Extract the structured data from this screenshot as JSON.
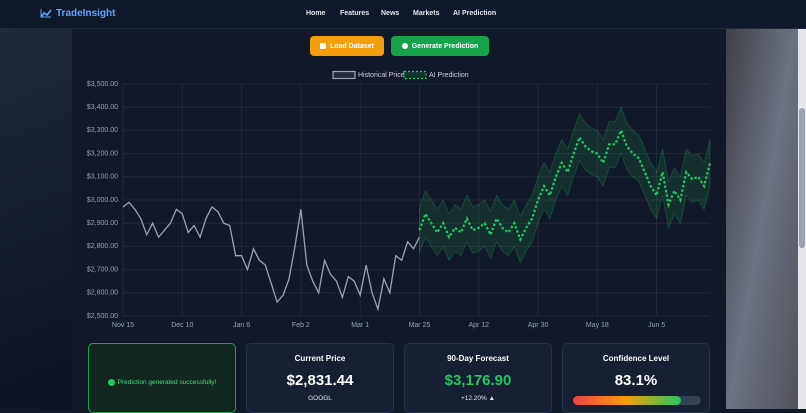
{
  "nav": {
    "brand": "TradeInsight",
    "links": [
      "Home",
      "Features",
      "News",
      "Markets",
      "AI Prediction"
    ]
  },
  "buttons": [
    "Load Dataset",
    "Generate Prediction"
  ],
  "chart_data": {
    "type": "line",
    "categories": [
      "Nov 15",
      null,
      null,
      null,
      null,
      null,
      null,
      null,
      null,
      null,
      "Dec 10",
      null,
      null,
      null,
      null,
      null,
      null,
      null,
      null,
      null,
      "Jan 6",
      null,
      null,
      null,
      null,
      null,
      null,
      null,
      null,
      null,
      "Feb 2",
      null,
      null,
      null,
      null,
      null,
      null,
      null,
      null,
      null,
      "Mar 1",
      null,
      null,
      null,
      null,
      null,
      null,
      null,
      null,
      null,
      "Mar 25",
      null,
      null,
      null,
      null,
      null,
      null,
      null,
      null,
      null,
      "Apr 12",
      null,
      null,
      null,
      null,
      null,
      null,
      null,
      null,
      null,
      "Apr 30",
      null,
      null,
      null,
      null,
      null,
      null,
      null,
      null,
      null,
      "May 18",
      null,
      null,
      null,
      null,
      null,
      null,
      null,
      null,
      null,
      "Jun 5",
      null,
      null,
      null,
      null,
      null,
      null,
      null,
      null,
      null
    ],
    "series": [
      {
        "name": "Historical Price",
        "color": "#9ca3af",
        "values": [
          2970,
          2990,
          2960,
          2920,
          2850,
          2900,
          2840,
          2870,
          2900,
          2960,
          2940,
          2860,
          2890,
          2840,
          2920,
          2970,
          2950,
          2900,
          2890,
          2760,
          2760,
          2700,
          2790,
          2740,
          2720,
          2640,
          2560,
          2590,
          2660,
          2800,
          2960,
          2720,
          2650,
          2600,
          2740,
          2680,
          2650,
          2580,
          2670,
          2650,
          2590,
          2720,
          2600,
          2530,
          2660,
          2600,
          2760,
          2740,
          2820,
          2790,
          2840,
          null,
          null,
          null,
          null,
          null,
          null,
          null,
          null,
          null,
          null,
          null,
          null,
          null,
          null,
          null,
          null,
          null,
          null,
          null,
          null,
          null,
          null,
          null,
          null,
          null,
          null,
          null,
          null,
          null,
          null,
          null,
          null,
          null,
          null,
          null,
          null,
          null,
          null,
          null,
          null,
          null,
          null,
          null,
          null,
          null,
          null,
          null,
          null,
          null
        ]
      },
      {
        "name": "AI Prediction",
        "color": "#22c55e",
        "values": [
          null,
          null,
          null,
          null,
          null,
          null,
          null,
          null,
          null,
          null,
          null,
          null,
          null,
          null,
          null,
          null,
          null,
          null,
          null,
          null,
          null,
          null,
          null,
          null,
          null,
          null,
          null,
          null,
          null,
          null,
          null,
          null,
          null,
          null,
          null,
          null,
          null,
          null,
          null,
          null,
          null,
          null,
          null,
          null,
          null,
          null,
          null,
          null,
          null,
          null,
          2870,
          2940,
          2900,
          2860,
          2900,
          2840,
          2880,
          2860,
          2920,
          2870,
          2880,
          2900,
          2850,
          2920,
          2880,
          2860,
          2900,
          2830,
          2880,
          2920,
          3000,
          3060,
          3020,
          3100,
          3160,
          3120,
          3200,
          3270,
          3230,
          3210,
          3200,
          3160,
          3240,
          3240,
          3300,
          3230,
          3200,
          3180,
          3120,
          3060,
          3020,
          3120,
          2980,
          3040,
          3000,
          3120,
          3090,
          3100,
          3060,
          3160
        ]
      }
    ],
    "confidence_band": 100,
    "ylim": [
      2500,
      3500
    ],
    "yticks": [
      {
        "value": 2500,
        "label": "$2,500.00"
      },
      {
        "value": 2600,
        "label": "$2,600.00"
      },
      {
        "value": 2700,
        "label": "$2,700.00"
      },
      {
        "value": 2800,
        "label": "$2,800.00"
      },
      {
        "value": 2900,
        "label": "$2,900.00"
      },
      {
        "value": 3000,
        "label": "$3,000.00"
      },
      {
        "value": 3100,
        "label": "$3,100.00"
      },
      {
        "value": 3200,
        "label": "$3,200.00"
      },
      {
        "value": 3300,
        "label": "$3,300.00"
      },
      {
        "value": 3400,
        "label": "$3,400.00"
      },
      {
        "value": 3500,
        "label": "$3,500.00"
      }
    ],
    "grid": true,
    "legend": "top"
  },
  "status": "Prediction generated successfully!",
  "cards": [
    {
      "title": "Current Price",
      "value": "$2,831.44",
      "note": "GOOGL"
    },
    {
      "title": "90-Day Forecast",
      "value": "$3,176.90",
      "note": "+12.20% ▲"
    },
    {
      "title": "Confidence Level",
      "value": "83.1%"
    }
  ]
}
